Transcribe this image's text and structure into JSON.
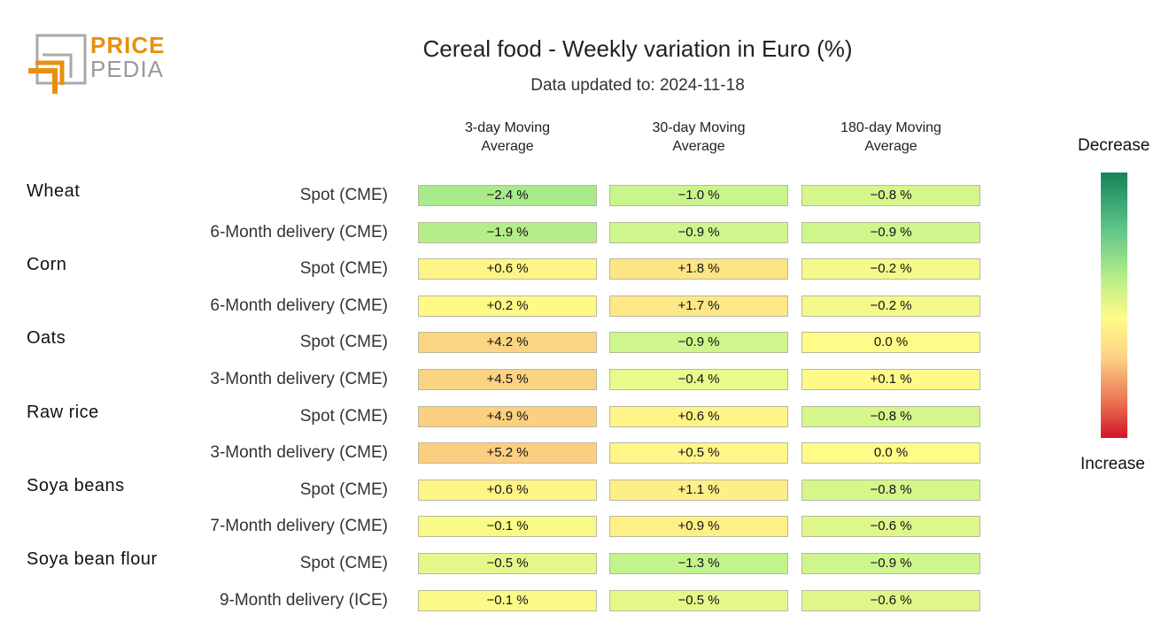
{
  "brand": {
    "line1": "PRICE",
    "line2": "PEDIA"
  },
  "title": "Cereal food - Weekly variation in Euro (%)",
  "subtitle": "Data updated to: 2024-11-18",
  "legend": {
    "top": "Decrease",
    "bottom": "Increase"
  },
  "chart_data": {
    "type": "table",
    "title": "Cereal food - Weekly variation in Euro (%)",
    "subtitle": "Data updated to: 2024-11-18",
    "columns": [
      "3-day Moving\nAverage",
      "30-day Moving\nAverage",
      "180-day Moving\nAverage"
    ],
    "groups": [
      {
        "name": "Wheat",
        "rows": [
          {
            "label": "Spot (CME)",
            "values": [
              "−2.4 %",
              "−1.0 %",
              "−0.8 %"
            ],
            "numbers": [
              -2.4,
              -1.0,
              -0.8
            ]
          },
          {
            "label": "6-Month delivery (CME)",
            "values": [
              "−1.9 %",
              "−0.9 %",
              "−0.9 %"
            ],
            "numbers": [
              -1.9,
              -0.9,
              -0.9
            ]
          }
        ]
      },
      {
        "name": "Corn",
        "rows": [
          {
            "label": "Spot (CME)",
            "values": [
              "+0.6 %",
              "+1.8 %",
              "−0.2 %"
            ],
            "numbers": [
              0.6,
              1.8,
              -0.2
            ]
          },
          {
            "label": "6-Month delivery (CME)",
            "values": [
              "+0.2 %",
              "+1.7 %",
              "−0.2 %"
            ],
            "numbers": [
              0.2,
              1.7,
              -0.2
            ]
          }
        ]
      },
      {
        "name": "Oats",
        "rows": [
          {
            "label": "Spot (CME)",
            "values": [
              "+4.2 %",
              "−0.9 %",
              "0.0 %"
            ],
            "numbers": [
              4.2,
              -0.9,
              0.0
            ]
          },
          {
            "label": "3-Month delivery (CME)",
            "values": [
              "+4.5 %",
              "−0.4 %",
              "+0.1 %"
            ],
            "numbers": [
              4.5,
              -0.4,
              0.1
            ]
          }
        ]
      },
      {
        "name": "Raw rice",
        "rows": [
          {
            "label": "Spot (CME)",
            "values": [
              "+4.9 %",
              "+0.6 %",
              "−0.8 %"
            ],
            "numbers": [
              4.9,
              0.6,
              -0.8
            ]
          },
          {
            "label": "3-Month delivery (CME)",
            "values": [
              "+5.2 %",
              "+0.5 %",
              "0.0 %"
            ],
            "numbers": [
              5.2,
              0.5,
              0.0
            ]
          }
        ]
      },
      {
        "name": "Soya beans",
        "rows": [
          {
            "label": "Spot (CME)",
            "values": [
              "+0.6 %",
              "+1.1 %",
              "−0.8 %"
            ],
            "numbers": [
              0.6,
              1.1,
              -0.8
            ]
          },
          {
            "label": "7-Month delivery (CME)",
            "values": [
              "−0.1 %",
              "+0.9 %",
              "−0.6 %"
            ],
            "numbers": [
              -0.1,
              0.9,
              -0.6
            ]
          }
        ]
      },
      {
        "name": "Soya bean flour",
        "rows": [
          {
            "label": "Spot (CME)",
            "values": [
              "−0.5 %",
              "−1.3 %",
              "−0.9 %"
            ],
            "numbers": [
              -0.5,
              -1.3,
              -0.9
            ]
          },
          {
            "label": "9-Month delivery (ICE)",
            "values": [
              "−0.1 %",
              "−0.5 %",
              "−0.6 %"
            ],
            "numbers": [
              -0.1,
              -0.5,
              -0.6
            ]
          }
        ]
      }
    ],
    "color_scale": {
      "decrease": "#14835a",
      "neutral": "#fffb88",
      "increase": "#d2142a"
    }
  }
}
